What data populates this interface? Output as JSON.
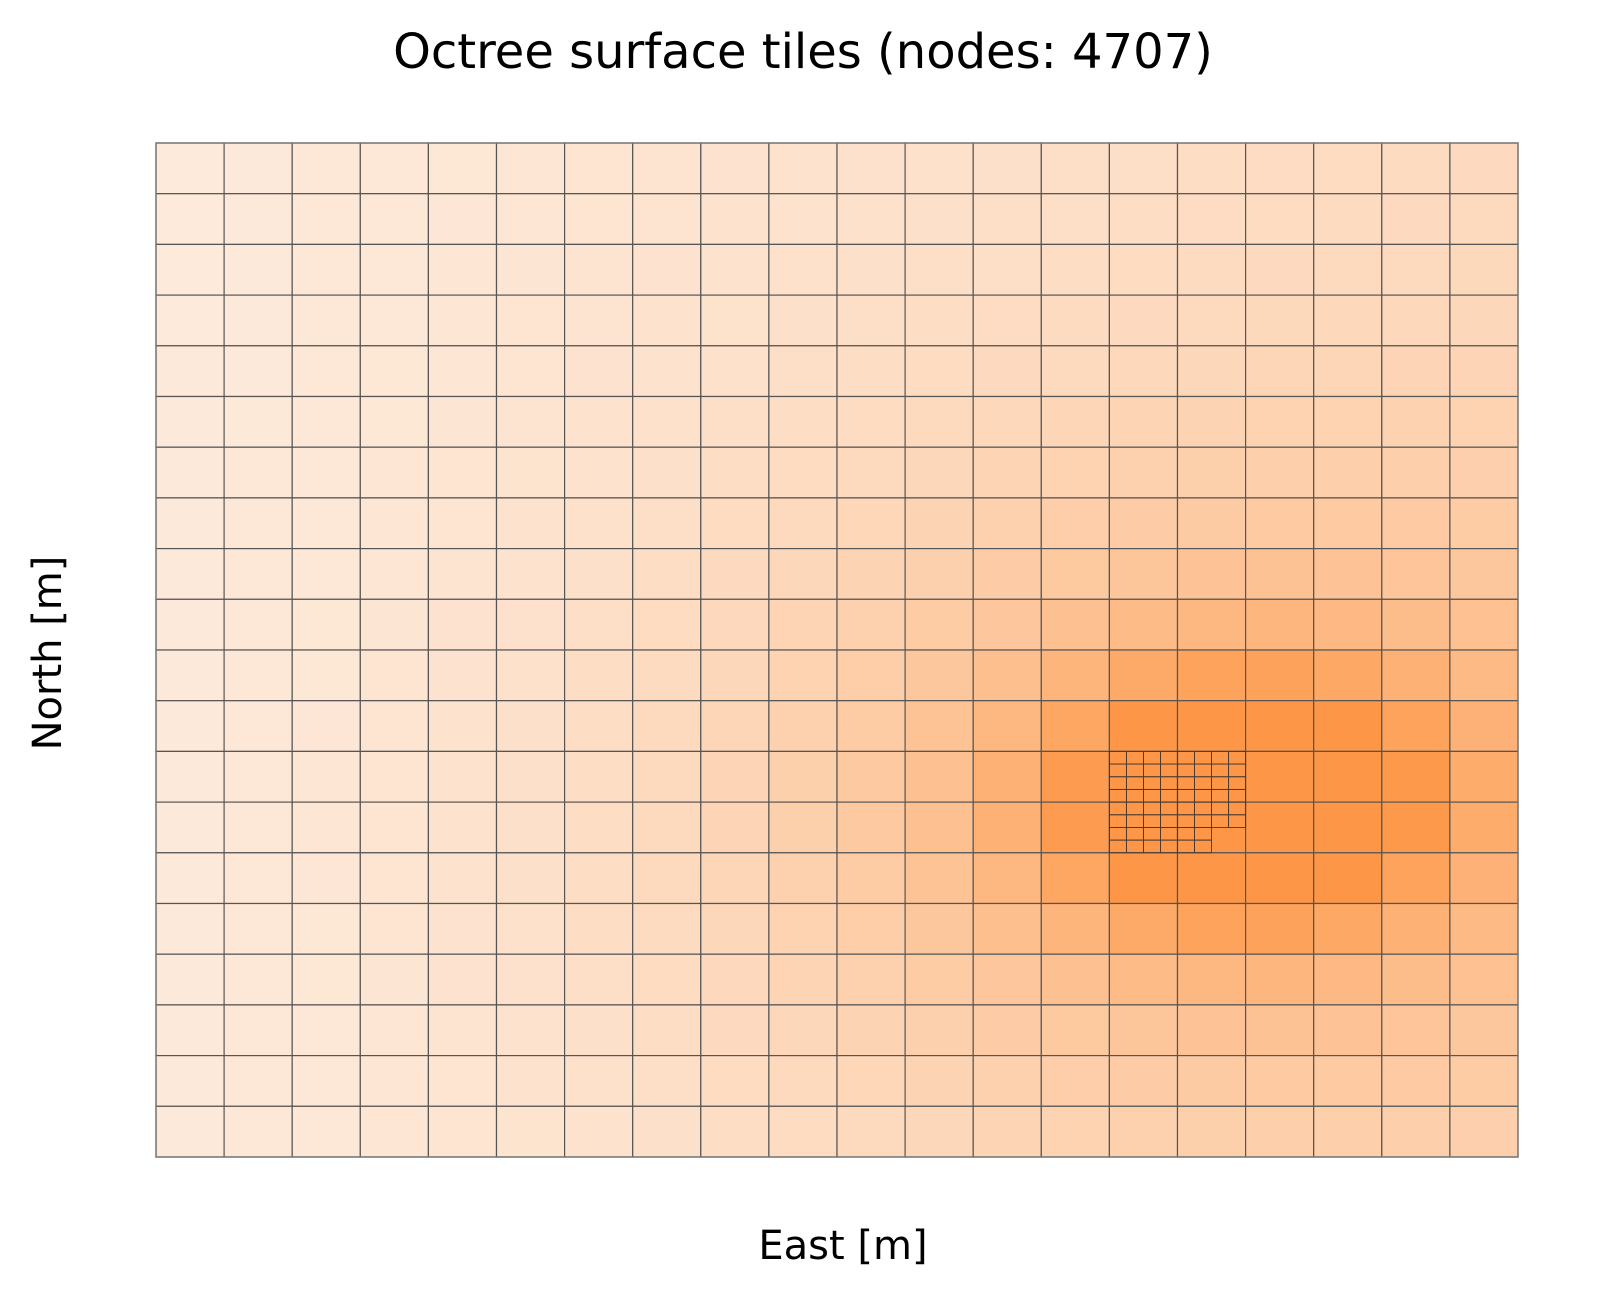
{
  "title": "Octree surface tiles (nodes: 4707)",
  "chart_data": {
    "type": "heatmap",
    "title": "Octree surface tiles (nodes: 4707)",
    "xlabel": "East [m]",
    "ylabel": "North [m]",
    "grid": {
      "columns": 20,
      "rows": 20
    },
    "refined_region": {
      "columns": [
        14,
        15
      ],
      "rows": [
        12,
        13
      ],
      "subdivision": 8
    },
    "colormap": [
      "#fdeadb",
      "#fd9747"
    ],
    "anomaly_center": {
      "column": 16,
      "row": 13
    },
    "tick_labels": false,
    "legend": "none"
  }
}
